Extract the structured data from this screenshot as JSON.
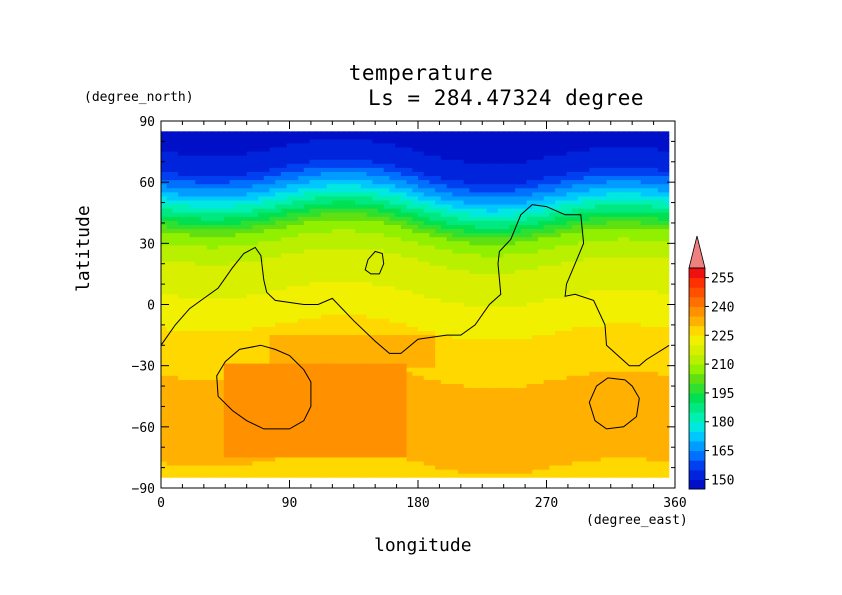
{
  "chart_data": {
    "type": "heatmap",
    "title": "temperature",
    "subtitle": "Ls = 284.47324 degree",
    "xlabel": "longitude",
    "ylabel": "latitude",
    "x_units": "(degree_east)",
    "y_units": "(degree_north)",
    "xlim": [
      0,
      360
    ],
    "ylim": [
      -90,
      90
    ],
    "data_extent": {
      "lon": [
        0,
        356
      ],
      "lat": [
        -85,
        85
      ]
    },
    "x_ticks": [
      0,
      90,
      180,
      270,
      360
    ],
    "x_tick_labels": [
      "0",
      "90",
      "180",
      "270",
      "360"
    ],
    "y_ticks": [
      90,
      60,
      30,
      0,
      -30,
      -60,
      -90
    ],
    "y_tick_labels": [
      "90",
      "60",
      "30",
      "0",
      "−30",
      "−60",
      "−90"
    ],
    "colorbar": {
      "boundaries": [
        145,
        150,
        155,
        160,
        165,
        170,
        175,
        180,
        185,
        190,
        195,
        200,
        205,
        210,
        215,
        220,
        225,
        230,
        235,
        240,
        245,
        250,
        255,
        260
      ],
      "labels": [
        "150",
        "165",
        "180",
        "195",
        "210",
        "225",
        "240",
        "255"
      ],
      "colors": [
        "#0010c8",
        "#0024dc",
        "#0040f0",
        "#0070ff",
        "#009cff",
        "#00c8ff",
        "#00e8e0",
        "#00f0b0",
        "#00e880",
        "#00e050",
        "#30e030",
        "#60e010",
        "#90f000",
        "#b8f000",
        "#d8f000",
        "#f0f000",
        "#ffd800",
        "#ffb000",
        "#ff9000",
        "#ff7000",
        "#ff5000",
        "#ff3000",
        "#f01010"
      ],
      "extend_low_color": "#0808a0",
      "extend_high_color": "#f08080"
    },
    "latitude_profile": {
      "lat": [
        -85,
        -75,
        -65,
        -55,
        -45,
        -35,
        -25,
        -15,
        -5,
        5,
        15,
        25,
        35,
        45,
        55,
        65,
        75,
        85
      ],
      "temperature": [
        227,
        231,
        230,
        231,
        232,
        230,
        229,
        226,
        223,
        220,
        217,
        214,
        206,
        188,
        170,
        155,
        150,
        148
      ]
    },
    "warm_regions": [
      {
        "lon": [
          45,
          170
        ],
        "lat": [
          -75,
          -30
        ],
        "approx_temperature": 236
      },
      {
        "lon": [
          75,
          190
        ],
        "lat": [
          -30,
          -15
        ],
        "approx_temperature": 230
      }
    ],
    "contour_lines": [
      {
        "points": [
          [
            0,
            -20
          ],
          [
            10,
            -10
          ],
          [
            20,
            -2
          ],
          [
            30,
            3
          ],
          [
            40,
            8
          ],
          [
            50,
            18
          ],
          [
            58,
            25
          ],
          [
            66,
            28
          ],
          [
            70,
            24
          ],
          [
            72,
            12
          ],
          [
            74,
            6
          ],
          [
            80,
            2
          ],
          [
            100,
            0
          ],
          [
            110,
            0
          ],
          [
            120,
            3
          ],
          [
            135,
            -8
          ],
          [
            150,
            -18
          ],
          [
            160,
            -24
          ],
          [
            168,
            -24
          ],
          [
            180,
            -17
          ],
          [
            200,
            -15
          ],
          [
            210,
            -15
          ],
          [
            220,
            -10
          ],
          [
            230,
            0
          ],
          [
            238,
            5
          ],
          [
            236,
            20
          ],
          [
            237,
            26
          ],
          [
            245,
            32
          ],
          [
            252,
            44
          ],
          [
            260,
            49
          ],
          [
            270,
            48
          ],
          [
            283,
            44
          ],
          [
            294,
            44
          ],
          [
            296,
            30
          ],
          [
            290,
            20
          ],
          [
            284,
            10
          ],
          [
            283,
            4
          ],
          [
            290,
            5
          ],
          [
            303,
            2
          ],
          [
            311,
            -10
          ],
          [
            312,
            -20
          ],
          [
            320,
            -25
          ],
          [
            328,
            -30
          ],
          [
            335,
            -30
          ],
          [
            340,
            -27
          ],
          [
            356,
            -20
          ]
        ]
      },
      {
        "points": [
          [
            145,
            22
          ],
          [
            150,
            26
          ],
          [
            155,
            25
          ],
          [
            156,
            20
          ],
          [
            153,
            15
          ],
          [
            147,
            15
          ],
          [
            143,
            17
          ],
          [
            145,
            22
          ]
        ]
      },
      {
        "points": [
          [
            70,
            -20
          ],
          [
            80,
            -22
          ],
          [
            90,
            -25
          ],
          [
            100,
            -32
          ],
          [
            105,
            -38
          ],
          [
            105,
            -50
          ],
          [
            100,
            -57
          ],
          [
            90,
            -61
          ],
          [
            72,
            -61
          ],
          [
            60,
            -57
          ],
          [
            50,
            -52
          ],
          [
            40,
            -45
          ],
          [
            39,
            -35
          ],
          [
            45,
            -28
          ],
          [
            55,
            -22
          ],
          [
            70,
            -20
          ]
        ]
      },
      {
        "points": [
          [
            325,
            -37
          ],
          [
            330,
            -40
          ],
          [
            335,
            -46
          ],
          [
            333,
            -55
          ],
          [
            324,
            -60
          ],
          [
            312,
            -61
          ],
          [
            304,
            -57
          ],
          [
            300,
            -48
          ],
          [
            305,
            -40
          ],
          [
            313,
            -36
          ],
          [
            325,
            -37
          ]
        ]
      }
    ]
  }
}
